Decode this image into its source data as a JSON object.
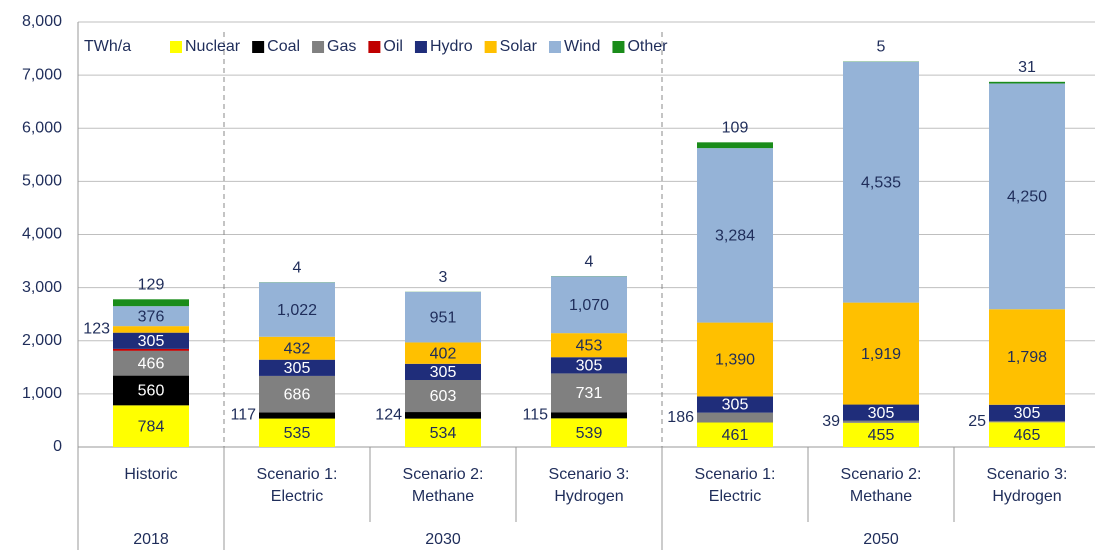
{
  "chart_data": {
    "type": "stacked_bar",
    "unit_label": "TWh/a",
    "categories": [
      [
        "Historic"
      ],
      [
        "Scenario 1:",
        "Electric"
      ],
      [
        "Scenario 2:",
        "Methane"
      ],
      [
        "Scenario 3:",
        "Hydrogen"
      ],
      [
        "Scenario 1:",
        "Electric"
      ],
      [
        "Scenario 2:",
        "Methane"
      ],
      [
        "Scenario 3:",
        "Hydrogen"
      ]
    ],
    "groups": [
      {
        "label": "2018",
        "span": 1
      },
      {
        "label": "2030",
        "span": 3
      },
      {
        "label": "2050",
        "span": 3
      }
    ],
    "series": [
      {
        "name": "Nuclear",
        "color": "#ffff00",
        "values": [
          784,
          535,
          534,
          539,
          461,
          455,
          465
        ],
        "value_labels": [
          "784",
          "535",
          "534",
          "539",
          "461",
          "455",
          "465"
        ]
      },
      {
        "name": "Coal",
        "color": "#000000",
        "values": [
          560,
          117,
          124,
          115,
          0,
          0,
          0
        ],
        "value_labels": [
          "560",
          "117",
          "124",
          "115",
          null,
          null,
          null
        ]
      },
      {
        "name": "Gas",
        "color": "#808080",
        "values": [
          466,
          686,
          603,
          731,
          186,
          39,
          25
        ],
        "value_labels": [
          "466",
          "686",
          "603",
          "731",
          "186",
          "39",
          "25"
        ]
      },
      {
        "name": "Oil",
        "color": "#c00000",
        "values": [
          37,
          0,
          0,
          0,
          0,
          0,
          0
        ]
      },
      {
        "name": "Hydro",
        "color": "#1f2d7a",
        "values": [
          305,
          305,
          305,
          305,
          305,
          305,
          305
        ],
        "value_labels": [
          "305",
          "305",
          "305",
          "305",
          "305",
          "305",
          "305"
        ]
      },
      {
        "name": "Solar",
        "color": "#ffc000",
        "values": [
          123,
          432,
          402,
          453,
          1390,
          1919,
          1798
        ],
        "value_labels": [
          "123",
          "432",
          "402",
          "453",
          "1,390",
          "1,919",
          "1,798"
        ]
      },
      {
        "name": "Wind",
        "color": "#95b3d7",
        "values": [
          376,
          1022,
          951,
          1070,
          3284,
          4535,
          4250
        ],
        "value_labels": [
          "376",
          "1,022",
          "951",
          "1,070",
          "3,284",
          "4,535",
          "4,250"
        ]
      },
      {
        "name": "Other",
        "color": "#1a8c1a",
        "values": [
          129,
          4,
          3,
          4,
          109,
          5,
          31
        ],
        "value_labels": [
          "129",
          "4",
          "3",
          "4",
          "109",
          "5",
          "31"
        ]
      }
    ],
    "ylim": [
      0,
      8000
    ],
    "yticks": [
      0,
      {
        "value": 1000,
        "label": "1,000"
      },
      {
        "value": 2000,
        "label": "2,000"
      },
      {
        "value": 3000,
        "label": "3,000"
      },
      {
        "value": 4000,
        "label": "4,000"
      },
      {
        "value": 5000,
        "label": "5,000"
      },
      {
        "value": 6000,
        "label": "6,000"
      },
      {
        "value": 7000,
        "label": "7,000"
      },
      {
        "value": 8000,
        "label": "8,000"
      }
    ],
    "grid": true
  }
}
